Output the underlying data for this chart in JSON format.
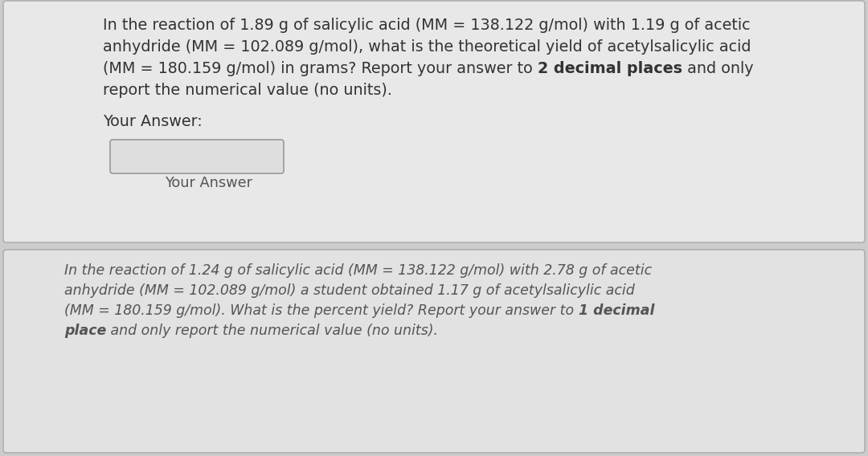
{
  "bg_color": "#cccccc",
  "panel1_bg": "#e8e8e8",
  "panel2_bg": "#e2e2e2",
  "panel_border": "#b0b0b0",
  "text_color1": "#333333",
  "text_color2": "#555555",
  "font_size1": 13.8,
  "font_size2": 12.5,
  "p1_line1": "In the reaction of 1.89 g of salicylic acid (MM = 138.122 g/mol) with 1.19 g of acetic",
  "p1_line2": "anhydride (MM = 102.089 g/mol), what is the theoretical yield of acetylsalicylic acid",
  "p1_line3a": "(MM = 180.159 g/mol) in grams? Report your answer to ",
  "p1_line3b": "2 decimal places",
  "p1_line3c": " and only",
  "p1_line4": "report the numerical value (no units).",
  "p1_your_answer": "Your Answer:",
  "p1_box_label": "Your Answer",
  "p2_line1": "In the reaction of 1.24 g of salicylic acid (MM = 138.122 g/mol) with 2.78 g of acetic",
  "p2_line2": "anhydride (MM = 102.089 g/mol) a student obtained 1.17 g of acetylsalicylic acid",
  "p2_line3a": "(MM = 180.159 g/mol). What is the percent yield? Report your answer to ",
  "p2_line3b": "1 decimal",
  "p2_line4a": "place",
  "p2_line4b": " and only report the numerical value (no units)."
}
